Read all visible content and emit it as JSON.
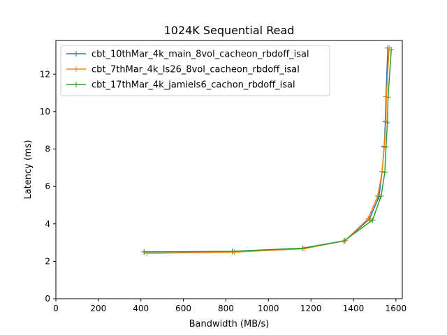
{
  "chart_data": {
    "type": "line",
    "title": "1024K  Sequential Read",
    "xlabel": "Bandwidth (MB/s)",
    "ylabel": "Latency (ms)",
    "xlim": [
      0,
      1630
    ],
    "ylim": [
      0,
      13.8
    ],
    "xticks": [
      0,
      200,
      400,
      600,
      800,
      1000,
      1200,
      1400,
      1600
    ],
    "yticks": [
      0,
      2,
      4,
      6,
      8,
      10,
      12
    ],
    "grid": false,
    "legend_position": "upper-left",
    "marker": "+",
    "series": [
      {
        "name": "cbt_10thMar_4k_main_8vol_cacheon_rbdoff_isal",
        "color": "#1f77b4",
        "x": [
          415,
          830,
          1160,
          1360,
          1475,
          1520,
          1535,
          1545,
          1550,
          1553,
          1562
        ],
        "y": [
          2.5,
          2.53,
          2.7,
          3.1,
          4.25,
          5.45,
          6.8,
          8.15,
          9.45,
          10.8,
          13.4
        ]
      },
      {
        "name": "cbt_7thMar_4k_ls26_8vol_cacheon_rbdoff_isal",
        "color": "#ff7f0e",
        "x": [
          428,
          840,
          1167,
          1360,
          1470,
          1515,
          1535,
          1545,
          1553,
          1555,
          1568
        ],
        "y": [
          2.42,
          2.49,
          2.67,
          3.1,
          4.28,
          5.5,
          6.8,
          8.1,
          9.5,
          10.8,
          13.4
        ]
      },
      {
        "name": "cbt_17thMar_4k_jamiels6_cachon_rbdoff_isal",
        "color": "#2ca02c",
        "x": [
          415,
          830,
          1160,
          1355,
          1490,
          1530,
          1548,
          1553,
          1560,
          1563,
          1578
        ],
        "y": [
          2.5,
          2.53,
          2.7,
          3.08,
          4.2,
          5.48,
          6.75,
          8.1,
          9.4,
          10.75,
          13.3
        ]
      }
    ]
  }
}
